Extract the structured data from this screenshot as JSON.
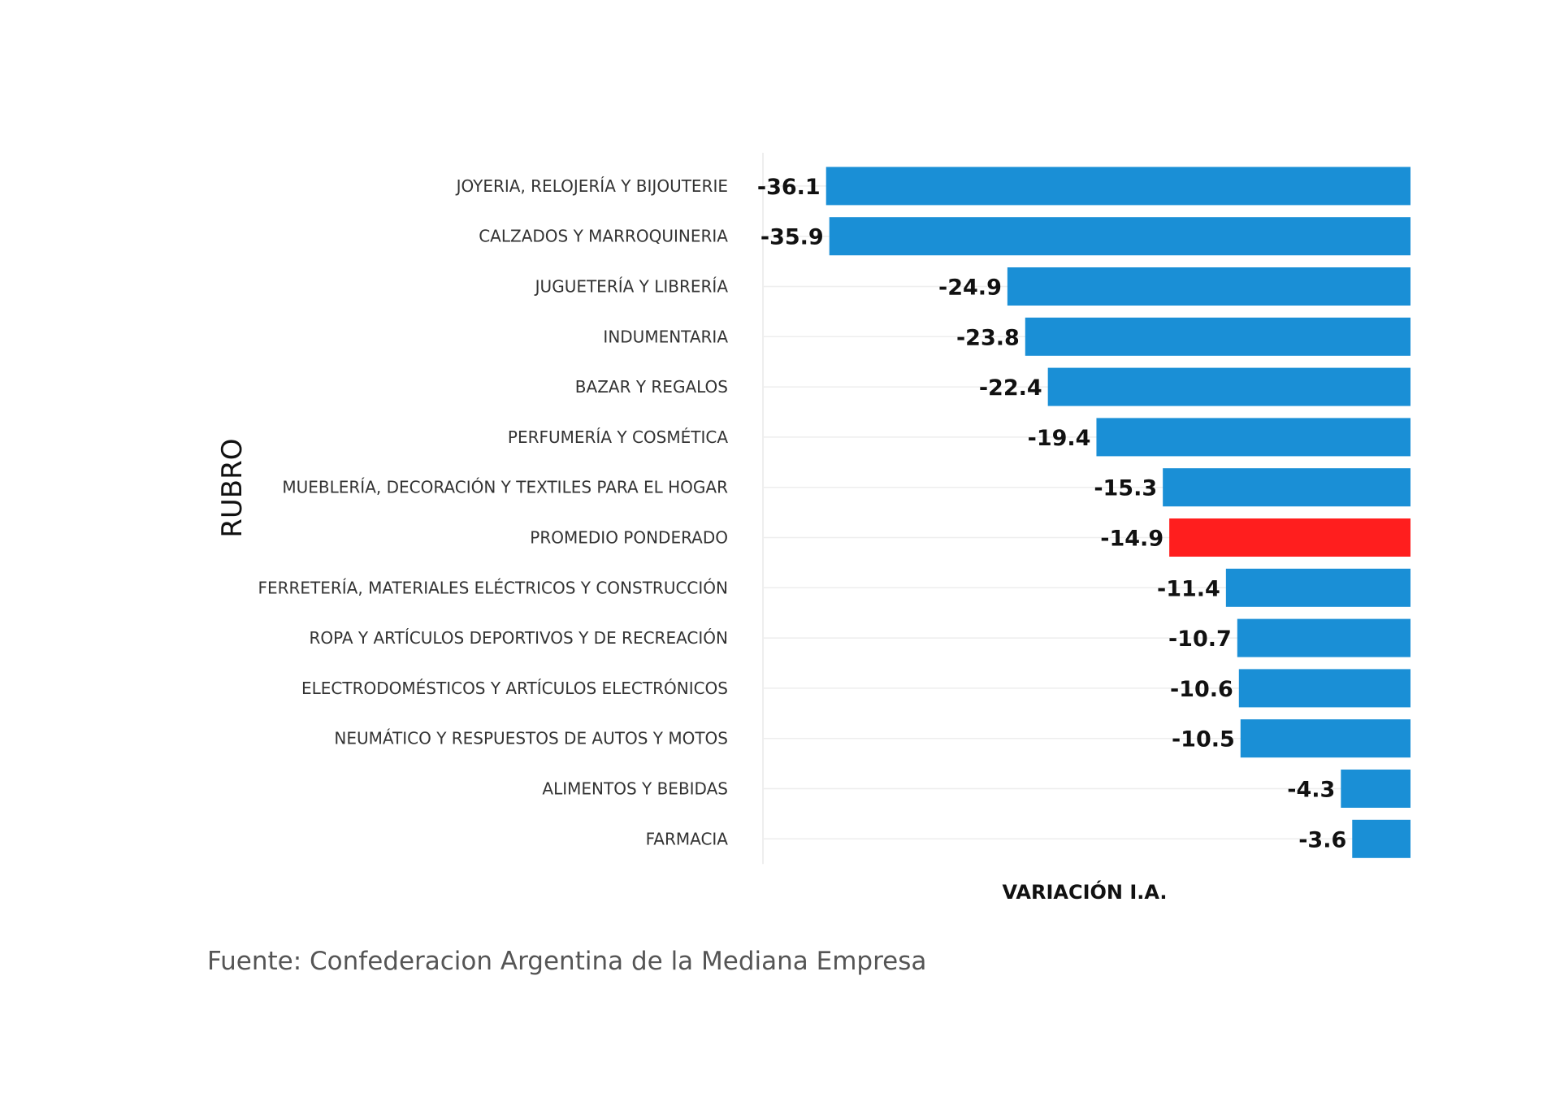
{
  "chart_data": {
    "type": "bar",
    "orientation": "horizontal",
    "ylabel": "RUBRO",
    "xlabel": "VARIACIÓN I.A.",
    "categories": [
      "JOYERIA, RELOJERÍA Y BIJOUTERIE",
      "CALZADOS Y MARROQUINERIA",
      "JUGUETERÍA Y LIBRERÍA",
      "INDUMENTARIA",
      "BAZAR Y REGALOS",
      "PERFUMERÍA Y COSMÉTICA",
      "MUEBLERÍA, DECORACIÓN Y TEXTILES PARA EL HOGAR",
      "PROMEDIO PONDERADO",
      "FERRETERÍA, MATERIALES ELÉCTRICOS Y CONSTRUCCIÓN",
      "ROPA Y ARTÍCULOS DEPORTIVOS Y DE RECREACIÓN",
      "ELECTRODOMÉSTICOS Y ARTÍCULOS ELECTRÓNICOS",
      "NEUMÁTICO Y RESPUESTOS DE AUTOS Y MOTOS",
      "ALIMENTOS Y BEBIDAS",
      "FARMACIA"
    ],
    "values": [
      -36.1,
      -35.9,
      -24.9,
      -23.8,
      -22.4,
      -19.4,
      -15.3,
      -14.9,
      -11.4,
      -10.7,
      -10.6,
      -10.5,
      -4.3,
      -3.6
    ],
    "value_labels": [
      "-36.1",
      "-35.9",
      "-24.9",
      "-23.8",
      "-22.4",
      "-19.4",
      "-15.3",
      "-14.9",
      "-11.4",
      "-10.7",
      "-10.6",
      "-10.5",
      "-4.3",
      "-3.6"
    ],
    "xlim": [
      -40,
      0
    ],
    "bar_color": "#1a8fd6",
    "highlight_color": "#ff1e1e",
    "highlight_category": "PROMEDIO PONDERADO",
    "grid": true
  },
  "source": "Fuente: Confederacion Argentina de la Mediana Empresa"
}
